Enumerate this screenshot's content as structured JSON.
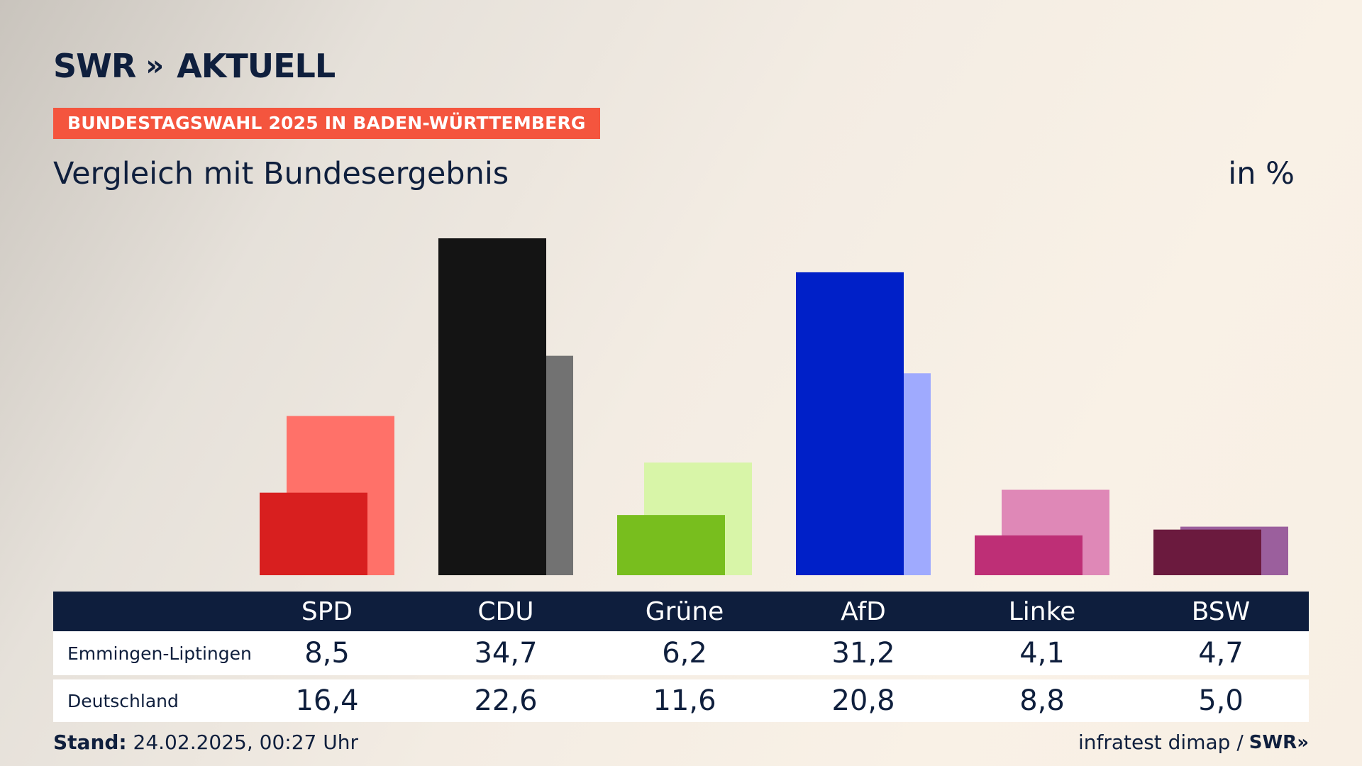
{
  "brand": {
    "name": "SWR",
    "chevrons": "»",
    "product": "AKTUELL"
  },
  "tag": "BUNDESTAGSWAHL 2025 IN BADEN-WÜRTTEMBERG",
  "subtitle": "Vergleich mit Bundesergebnis",
  "unit": "in %",
  "chart_data": {
    "type": "bar",
    "categories": [
      "SPD",
      "CDU",
      "Grüne",
      "AfD",
      "Linke",
      "BSW"
    ],
    "series": [
      {
        "name": "Emmingen-Liptingen",
        "values": [
          8.5,
          34.7,
          6.2,
          31.2,
          4.1,
          4.7
        ]
      },
      {
        "name": "Deutschland",
        "values": [
          16.4,
          22.6,
          11.6,
          20.8,
          8.8,
          5.0
        ]
      }
    ],
    "colors": {
      "primary": [
        "#d81f1f",
        "#141414",
        "#78be1e",
        "#0020c8",
        "#be2f76",
        "#6b1a3e"
      ],
      "secondary": [
        "#ff7169",
        "#727272",
        "#d8f5a8",
        "#9faafe",
        "#df88b7",
        "#9b5f9d"
      ]
    },
    "ylim": [
      0,
      35
    ]
  },
  "table": {
    "rows": [
      {
        "label": "Emmingen-Liptingen",
        "values": [
          "8,5",
          "34,7",
          "6,2",
          "31,2",
          "4,1",
          "4,7"
        ]
      },
      {
        "label": "Deutschland",
        "values": [
          "16,4",
          "22,6",
          "11,6",
          "20,8",
          "8,8",
          "5,0"
        ]
      }
    ]
  },
  "footer": {
    "stand_label": "Stand:",
    "stand_value": "24.02.2025, 00:27 Uhr",
    "source": "infratest dimap /",
    "source_logo": "SWR»"
  }
}
